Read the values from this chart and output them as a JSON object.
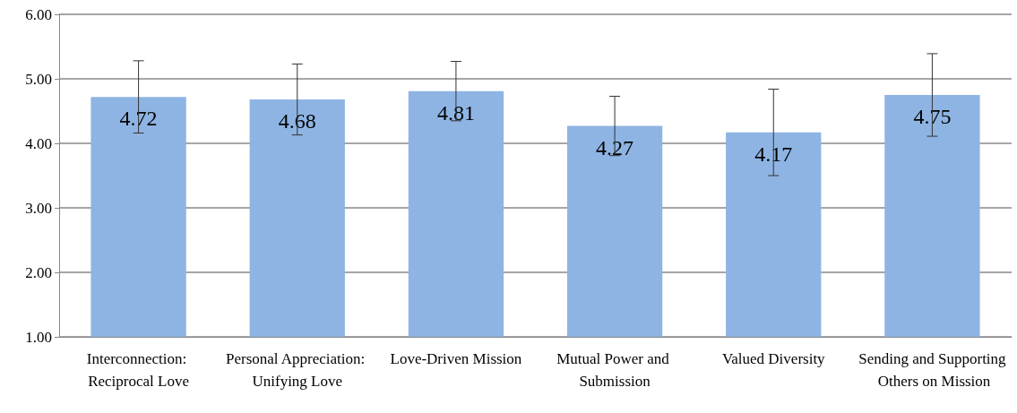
{
  "chart_data": {
    "type": "bar",
    "categories": [
      "Interconnection: Reciprocal Love",
      "Personal Appreciation: Unifying Love",
      "Love-Driven Mission",
      "Mutual Power and Submission",
      "Valued Diversity",
      "Sending and Supporting Others on Mission"
    ],
    "values": [
      4.72,
      4.68,
      4.81,
      4.27,
      4.17,
      4.75
    ],
    "errors": [
      0.56,
      0.55,
      0.46,
      0.46,
      0.67,
      0.64
    ],
    "color": "#8eb4e3",
    "ylim": [
      1,
      6
    ],
    "yticks": [
      {
        "value": 1,
        "label": "1.00"
      },
      {
        "value": 2,
        "label": "2.00"
      },
      {
        "value": 3,
        "label": "3.00"
      },
      {
        "value": 4,
        "label": "4.00"
      },
      {
        "value": 5,
        "label": "5.00"
      },
      {
        "value": 6,
        "label": "6.00"
      }
    ],
    "grid": "y",
    "data_labels": true
  }
}
